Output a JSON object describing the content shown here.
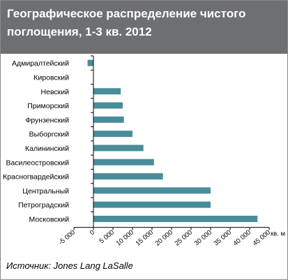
{
  "chart_data": {
    "type": "bar",
    "orientation": "horizontal",
    "title": "Географическое распределение чистого поглощения, 1-3 кв. 2012",
    "unit_label": "кв. м",
    "categories": [
      "Адмиралтейский",
      "Кировский",
      "Невский",
      "Приморский",
      "Фрунзенский",
      "Выборгский",
      "Калининский",
      "Василеостровский",
      "Красногвардейский",
      "Центральный",
      "Петроградский",
      "Московский"
    ],
    "values": [
      -1500,
      0,
      7000,
      7500,
      7800,
      10000,
      12800,
      15500,
      17800,
      30000,
      30000,
      42000
    ],
    "xlim": [
      -5000,
      45000
    ],
    "xticks": [
      -5000,
      0,
      5000,
      10000,
      15000,
      20000,
      25000,
      30000,
      35000,
      40000,
      45000
    ],
    "xtick_labels": [
      "-5 000",
      "0",
      "5 000",
      "10 000",
      "15 000",
      "20 000",
      "25 000",
      "30 000",
      "35 000",
      "40 000",
      "45 000"
    ],
    "bar_color": "#4a8d9a",
    "grid": false,
    "legend": "none"
  },
  "source": "Источник: Jones Lang LaSalle"
}
